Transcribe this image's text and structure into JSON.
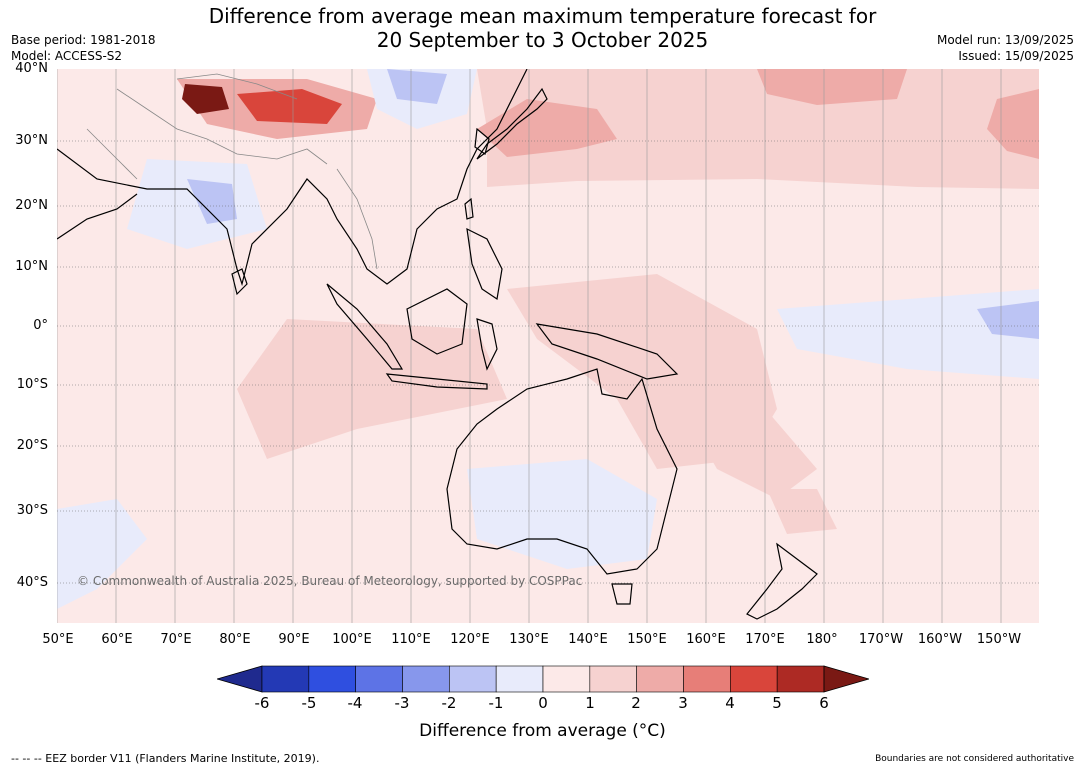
{
  "title_line1": "Difference from average mean maximum temperature forecast for",
  "title_line2": "20 September to 3 October 2025",
  "base_period": "Base period: 1981-2018",
  "model": "Model: ACCESS-S2",
  "model_run": "Model run: 13/09/2025",
  "issued": "Issued: 15/09/2025",
  "lat_labels": [
    "40°N",
    "30°N",
    "20°N",
    "10°N",
    "0°",
    "10°S",
    "20°S",
    "30°S",
    "40°S"
  ],
  "lon_labels": [
    "50°E",
    "60°E",
    "70°E",
    "80°E",
    "90°E",
    "100°E",
    "110°E",
    "120°E",
    "130°E",
    "140°E",
    "150°E",
    "160°E",
    "170°E",
    "180°",
    "170°W",
    "160°W",
    "150°W"
  ],
  "copyright": "© Commonwealth of Australia 2025, Bureau of Meteorology, supported by COSPPac",
  "colorbar": {
    "ticks": [
      "-6",
      "-5",
      "-4",
      "-3",
      "-2",
      "-1",
      "0",
      "1",
      "2",
      "3",
      "4",
      "5",
      "6"
    ],
    "colors": [
      "#1f2a8e",
      "#2339b5",
      "#2f4fe0",
      "#5d73e6",
      "#8797ec",
      "#bcc4f4",
      "#e8ebfb",
      "#fce9e8",
      "#f6d2d0",
      "#eeaba8",
      "#e77e78",
      "#d9453b",
      "#ad2a24",
      "#7a1914"
    ],
    "label": "Difference from average (°C)"
  },
  "footer_left": "--  --  -- EEZ border V11 (Flanders Marine Institute, 2019).",
  "footer_right": "Boundaries are not considered authoritative"
}
